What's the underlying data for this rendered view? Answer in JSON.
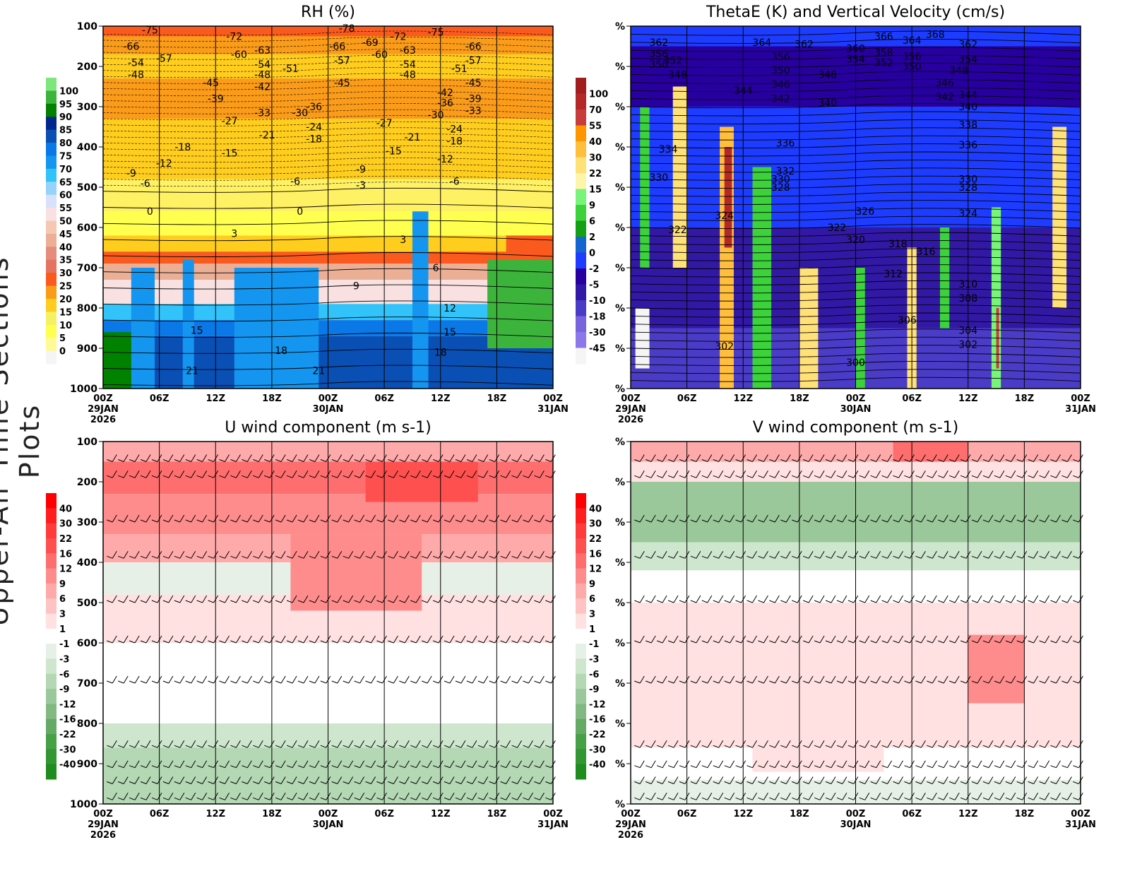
{
  "side_title": "Upper-Air Time Sections Plots",
  "x_ticks": [
    "00Z",
    "06Z",
    "12Z",
    "18Z",
    "00Z",
    "06Z",
    "12Z",
    "18Z",
    "00Z"
  ],
  "x_dates": [
    {
      "tick": 0,
      "lines": [
        "29JAN",
        "2026"
      ]
    },
    {
      "tick": 4,
      "lines": [
        "30JAN"
      ]
    },
    {
      "tick": 8,
      "lines": [
        "31JAN"
      ]
    }
  ],
  "chart_data": [
    {
      "type": "heatmap",
      "title": "RH (%)",
      "y_ticks": [
        "100",
        "200",
        "300",
        "400",
        "500",
        "600",
        "700",
        "800",
        "900",
        "1000"
      ],
      "ylim": [
        100,
        1000
      ],
      "x_range_hours": [
        0,
        48
      ],
      "colorbar": {
        "labels": [
          "100",
          "95",
          "90",
          "85",
          "80",
          "75",
          "70",
          "65",
          "60",
          "55",
          "50",
          "45",
          "40",
          "35",
          "30",
          "25",
          "20",
          "15",
          "10",
          "5",
          "0"
        ],
        "colors": [
          "#7de67d",
          "#3cb43c",
          "#008200",
          "#00288c",
          "#0a50b4",
          "#0a78e6",
          "#1496f0",
          "#32c3fa",
          "#96d2fa",
          "#d7e1fa",
          "#fae1e1",
          "#f5c8b4",
          "#ebaf96",
          "#e68c7d",
          "#e6735f",
          "#fa5a1e",
          "#fa9b19",
          "#ffcd1e",
          "#f5f064",
          "#ffff50",
          "#fffa96",
          "#f5f5f5"
        ]
      },
      "contour_labels": [
        [
          "-75",
          5,
          110
        ],
        [
          "-66",
          3,
          150
        ],
        [
          "-57",
          6.5,
          180
        ],
        [
          "-54",
          3.5,
          190
        ],
        [
          "-48",
          3.5,
          220
        ],
        [
          "-72",
          14,
          125
        ],
        [
          "-60",
          14.5,
          170
        ],
        [
          "-63",
          17,
          160
        ],
        [
          "-54",
          17,
          195
        ],
        [
          "-48",
          17,
          220
        ],
        [
          "-51",
          20,
          205
        ],
        [
          "-45",
          11.5,
          240
        ],
        [
          "-39",
          12,
          280
        ],
        [
          "-42",
          17,
          250
        ],
        [
          "-33",
          17,
          315
        ],
        [
          "-27",
          13.5,
          335
        ],
        [
          "-21",
          17.5,
          370
        ],
        [
          "-18",
          8.5,
          400
        ],
        [
          "-15",
          13.5,
          415
        ],
        [
          "-12",
          6.5,
          440
        ],
        [
          "-9",
          3,
          465
        ],
        [
          "-6",
          4.5,
          490
        ],
        [
          "-78",
          26,
          105
        ],
        [
          "-69",
          28.5,
          140
        ],
        [
          "-66",
          25,
          150
        ],
        [
          "-60",
          29.5,
          170
        ],
        [
          "-57",
          25.5,
          185
        ],
        [
          "-72",
          31.5,
          125
        ],
        [
          "-63",
          32.5,
          160
        ],
        [
          "-54",
          32.5,
          195
        ],
        [
          "-48",
          32.5,
          220
        ],
        [
          "-45",
          25.5,
          240
        ],
        [
          "-36",
          22.5,
          300
        ],
        [
          "-30",
          21,
          315
        ],
        [
          "-24",
          22.5,
          350
        ],
        [
          "-18",
          22.5,
          380
        ],
        [
          "-27",
          30,
          340
        ],
        [
          "-21",
          33,
          375
        ],
        [
          "-15",
          31,
          410
        ],
        [
          "-9",
          27.5,
          455
        ],
        [
          "-3",
          27.5,
          495
        ],
        [
          "-6",
          20.5,
          485
        ],
        [
          "-75",
          35.5,
          115
        ],
        [
          "-66",
          39.5,
          150
        ],
        [
          "-57",
          39.5,
          185
        ],
        [
          "-51",
          38,
          205
        ],
        [
          "-45",
          39.5,
          240
        ],
        [
          "-42",
          36.5,
          265
        ],
        [
          "-39",
          39.5,
          280
        ],
        [
          "-36",
          36.5,
          290
        ],
        [
          "-33",
          39.5,
          310
        ],
        [
          "-30",
          35.5,
          320
        ],
        [
          "-24",
          37.5,
          355
        ],
        [
          "-18",
          37.5,
          385
        ],
        [
          "-12",
          36.5,
          430
        ],
        [
          "-6",
          37.5,
          485
        ],
        [
          "0",
          5,
          560
        ],
        [
          "0",
          21,
          560
        ],
        [
          "3",
          14,
          615
        ],
        [
          "3",
          32,
          630
        ],
        [
          "6",
          35.5,
          700
        ],
        [
          "9",
          27,
          745
        ],
        [
          "12",
          37,
          800
        ],
        [
          "15",
          10,
          855
        ],
        [
          "15",
          37,
          860
        ],
        [
          "18",
          19,
          905
        ],
        [
          "18",
          36,
          910
        ],
        [
          "21",
          9.5,
          955
        ],
        [
          "21",
          23,
          955
        ]
      ]
    },
    {
      "type": "heatmap",
      "title": "ThetaE (K) and Vertical Velocity (cm/s)",
      "y_ticks": [
        "%",
        "%",
        "%",
        "%",
        "%",
        "%",
        "%",
        "%",
        "%",
        "%"
      ],
      "x_range_hours": [
        0,
        48
      ],
      "colorbar": {
        "labels": [
          "100",
          "70",
          "55",
          "40",
          "30",
          "22",
          "15",
          "9",
          "6",
          "2",
          "0",
          "-2",
          "-5",
          "-10",
          "-18",
          "-30",
          "-45"
        ],
        "colors": [
          "#a01e1e",
          "#b42828",
          "#c83c3c",
          "#ff9600",
          "#ffbe3c",
          "#ffe178",
          "#fff5aa",
          "#78f578",
          "#3cd23c",
          "#14a014",
          "#1464d2",
          "#1e3cff",
          "#2800a0",
          "#3219a5",
          "#4b3cc8",
          "#7864dc",
          "#8c78eb",
          "#f5f5f5"
        ]
      },
      "contour_labels": [
        [
          "362",
          3,
          140
        ],
        [
          "356",
          3,
          168
        ],
        [
          "350",
          3,
          195
        ],
        [
          "352",
          4.5,
          185
        ],
        [
          "348",
          5,
          220
        ],
        [
          "364",
          14,
          140
        ],
        [
          "344",
          12,
          260
        ],
        [
          "356",
          16,
          175
        ],
        [
          "350",
          16,
          210
        ],
        [
          "346",
          16,
          245
        ],
        [
          "342",
          16,
          280
        ],
        [
          "362",
          18.5,
          145
        ],
        [
          "348",
          21,
          220
        ],
        [
          "340",
          21,
          290
        ],
        [
          "360",
          24,
          155
        ],
        [
          "354",
          24,
          182
        ],
        [
          "358",
          27,
          165
        ],
        [
          "352",
          27,
          190
        ],
        [
          "366",
          27,
          125
        ],
        [
          "364",
          30,
          135
        ],
        [
          "356",
          30,
          175
        ],
        [
          "350",
          30,
          200
        ],
        [
          "368",
          32.5,
          120
        ],
        [
          "362",
          36,
          145
        ],
        [
          "354",
          36,
          182
        ],
        [
          "348",
          35,
          210
        ],
        [
          "346",
          33.5,
          240
        ],
        [
          "344",
          36,
          270
        ],
        [
          "342",
          33.5,
          275
        ],
        [
          "340",
          36,
          300
        ],
        [
          "338",
          36,
          345
        ],
        [
          "336",
          16.5,
          390
        ],
        [
          "336",
          36,
          395
        ],
        [
          "334",
          4,
          405
        ],
        [
          "332",
          16.5,
          460
        ],
        [
          "330",
          16,
          480
        ],
        [
          "328",
          16,
          500
        ],
        [
          "330",
          36,
          480
        ],
        [
          "328",
          36,
          500
        ],
        [
          "330",
          3,
          475
        ],
        [
          "324",
          10,
          570
        ],
        [
          "326",
          25,
          560
        ],
        [
          "322",
          5,
          605
        ],
        [
          "322",
          22,
          600
        ],
        [
          "320",
          24,
          630
        ],
        [
          "318",
          28.5,
          640
        ],
        [
          "316",
          31.5,
          660
        ],
        [
          "324",
          36,
          565
        ],
        [
          "312",
          28,
          715
        ],
        [
          "310",
          36,
          740
        ],
        [
          "308",
          36,
          775
        ],
        [
          "306",
          29.5,
          830
        ],
        [
          "304",
          36,
          855
        ],
        [
          "302",
          36,
          890
        ],
        [
          "302",
          10,
          895
        ],
        [
          "300",
          24,
          935
        ]
      ]
    },
    {
      "type": "heatmap",
      "title": "U wind component (m s-1)",
      "y_ticks": [
        "100",
        "200",
        "300",
        "400",
        "500",
        "600",
        "700",
        "800",
        "900",
        "1000"
      ],
      "x_range_hours": [
        0,
        48
      ],
      "colorbar": {
        "labels": [
          "40",
          "30",
          "22",
          "16",
          "12",
          "9",
          "6",
          "3",
          "1",
          "-1",
          "-3",
          "-6",
          "-9",
          "-12",
          "-16",
          "-22",
          "-30",
          "-40"
        ],
        "colors": [
          "#ff0000",
          "#ff1e1e",
          "#ff3c3c",
          "#ff5050",
          "#ff6e6e",
          "#ff8c8c",
          "#ffaaaa",
          "#ffc3c3",
          "#ffe1e1",
          "#ffffff",
          "#e6f0e6",
          "#cde6cd",
          "#b4d7b4",
          "#9bc89b",
          "#82b982",
          "#64aa64",
          "#46a046",
          "#329632",
          "#1e8c1e"
        ]
      }
    },
    {
      "type": "heatmap",
      "title": "V wind component (m s-1)",
      "y_ticks": [
        "%",
        "%",
        "%",
        "%",
        "%",
        "%",
        "%",
        "%",
        "%",
        "%"
      ],
      "x_range_hours": [
        0,
        48
      ],
      "colorbar": {
        "labels": [
          "40",
          "30",
          "22",
          "16",
          "12",
          "9",
          "6",
          "3",
          "1",
          "-1",
          "-3",
          "-6",
          "-9",
          "-12",
          "-16",
          "-22",
          "-30",
          "-40"
        ],
        "colors": [
          "#ff0000",
          "#ff1e1e",
          "#ff3c3c",
          "#ff5050",
          "#ff6e6e",
          "#ff8c8c",
          "#ffaaaa",
          "#ffc3c3",
          "#ffe1e1",
          "#ffffff",
          "#e6f0e6",
          "#cde6cd",
          "#b4d7b4",
          "#9bc89b",
          "#82b982",
          "#64aa64",
          "#46a046",
          "#329632",
          "#1e8c1e"
        ]
      }
    }
  ]
}
